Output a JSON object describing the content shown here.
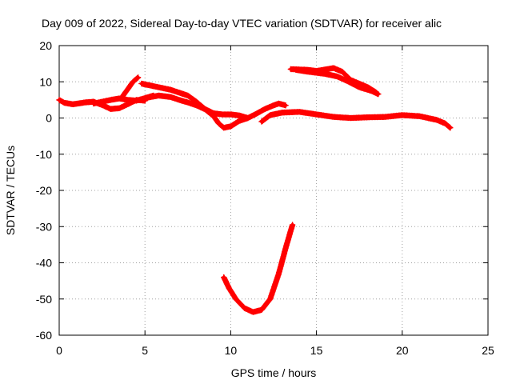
{
  "chart_data": {
    "type": "scatter",
    "title": "Day 009 of 2022, Sidereal Day-to-day VTEC variation (SDTVAR) for receiver alic",
    "xlabel": "GPS time / hours",
    "ylabel": "SDTVAR / TECUs",
    "xlim": [
      0,
      25
    ],
    "ylim": [
      -60,
      20
    ],
    "xticks": [
      0,
      5,
      10,
      15,
      20,
      25
    ],
    "yticks": [
      -60,
      -50,
      -40,
      -30,
      -20,
      -10,
      0,
      10,
      20
    ],
    "grid": true,
    "marker": "plus",
    "color": "#ff0000",
    "series": [
      {
        "name": "track-0-5h",
        "points": [
          [
            0.0,
            5.0
          ],
          [
            0.3,
            4.2
          ],
          [
            0.8,
            3.8
          ],
          [
            1.5,
            4.3
          ],
          [
            2.0,
            4.5
          ],
          [
            2.5,
            3.6
          ],
          [
            3.0,
            2.5
          ],
          [
            3.5,
            2.7
          ],
          [
            4.0,
            3.8
          ],
          [
            4.5,
            5.0
          ],
          [
            5.0,
            4.8
          ]
        ]
      },
      {
        "name": "track-3-5h-upper",
        "points": [
          [
            2.0,
            4.0
          ],
          [
            3.0,
            5.0
          ],
          [
            3.5,
            5.4
          ],
          [
            4.0,
            5.0
          ],
          [
            4.5,
            4.8
          ],
          [
            5.0,
            5.5
          ],
          [
            5.5,
            6.2
          ]
        ]
      },
      {
        "name": "track-4h-spike",
        "points": [
          [
            3.7,
            6.0
          ],
          [
            4.0,
            8.0
          ],
          [
            4.3,
            10.0
          ],
          [
            4.6,
            11.2
          ]
        ]
      },
      {
        "name": "track-5-10h-upper",
        "points": [
          [
            4.8,
            9.5
          ],
          [
            5.5,
            8.8
          ],
          [
            6.5,
            7.8
          ],
          [
            7.5,
            6.2
          ],
          [
            8.0,
            4.5
          ],
          [
            8.5,
            2.5
          ],
          [
            9.0,
            1.3
          ],
          [
            9.5,
            1.0
          ],
          [
            10.0,
            1.0
          ],
          [
            10.5,
            0.7
          ],
          [
            11.0,
            0.0
          ]
        ]
      },
      {
        "name": "track-5-10h-lower",
        "points": [
          [
            5.0,
            5.5
          ],
          [
            5.8,
            6.2
          ],
          [
            6.5,
            5.8
          ],
          [
            7.0,
            5.0
          ],
          [
            7.5,
            4.3
          ],
          [
            8.0,
            3.5
          ],
          [
            8.5,
            2.4
          ],
          [
            9.0,
            0.5
          ],
          [
            9.3,
            -1.5
          ],
          [
            9.6,
            -2.7
          ],
          [
            10.0,
            -2.3
          ],
          [
            10.5,
            -0.8
          ],
          [
            11.0,
            0.0
          ]
        ]
      },
      {
        "name": "track-10-13h",
        "points": [
          [
            11.0,
            0.0
          ],
          [
            11.5,
            1.2
          ],
          [
            12.0,
            2.5
          ],
          [
            12.5,
            3.5
          ],
          [
            12.8,
            4.0
          ],
          [
            13.2,
            3.5
          ]
        ]
      },
      {
        "name": "track-12-23h",
        "points": [
          [
            11.8,
            -1.0
          ],
          [
            12.3,
            0.8
          ],
          [
            13.0,
            1.5
          ],
          [
            14.0,
            1.7
          ],
          [
            15.0,
            1.0
          ],
          [
            16.0,
            0.3
          ],
          [
            17.0,
            0.0
          ],
          [
            18.0,
            0.2
          ],
          [
            19.0,
            0.3
          ],
          [
            20.0,
            0.8
          ],
          [
            21.0,
            0.5
          ],
          [
            22.0,
            -0.5
          ],
          [
            22.5,
            -1.5
          ],
          [
            22.8,
            -2.7
          ]
        ]
      },
      {
        "name": "track-13-18h-upper",
        "points": [
          [
            13.5,
            13.5
          ],
          [
            14.5,
            13.3
          ],
          [
            15.0,
            13.0
          ],
          [
            16.0,
            13.8
          ],
          [
            16.5,
            12.8
          ],
          [
            17.0,
            10.5
          ],
          [
            17.5,
            9.5
          ],
          [
            18.0,
            8.5
          ],
          [
            18.5,
            7.0
          ]
        ]
      },
      {
        "name": "track-13-18h-lower",
        "points": [
          [
            13.8,
            13.3
          ],
          [
            14.5,
            12.8
          ],
          [
            15.5,
            12.2
          ],
          [
            16.2,
            11.5
          ],
          [
            16.8,
            10.2
          ],
          [
            17.5,
            8.5
          ],
          [
            18.2,
            7.5
          ],
          [
            18.6,
            6.6
          ]
        ]
      },
      {
        "name": "track-negative-arc",
        "points": [
          [
            9.6,
            -44.0
          ],
          [
            9.9,
            -47.0
          ],
          [
            10.3,
            -50.0
          ],
          [
            10.8,
            -52.5
          ],
          [
            11.3,
            -53.6
          ],
          [
            11.8,
            -53.0
          ],
          [
            12.3,
            -50.0
          ],
          [
            12.8,
            -43.0
          ],
          [
            13.2,
            -36.0
          ],
          [
            13.6,
            -29.5
          ]
        ]
      }
    ]
  }
}
